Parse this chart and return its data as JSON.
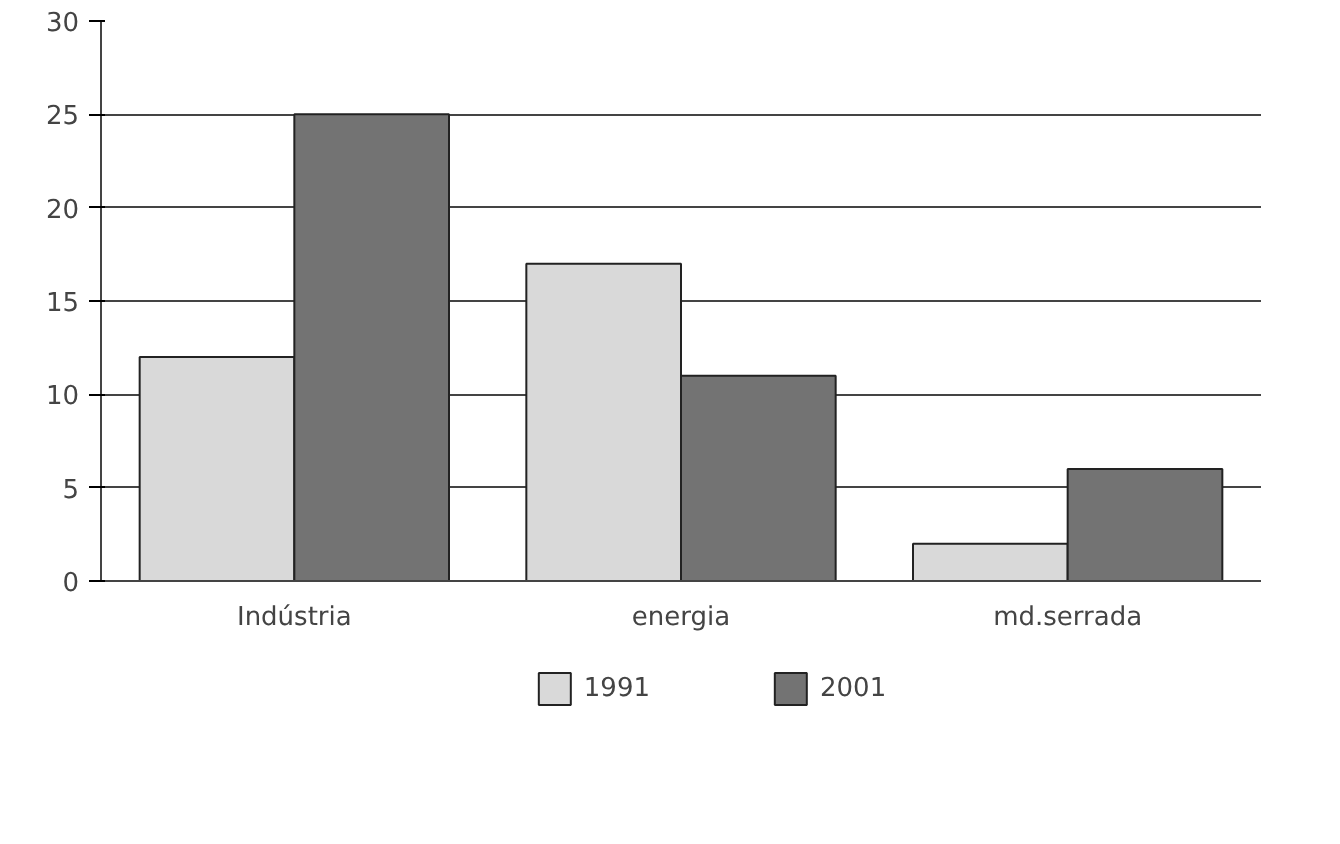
{
  "chart_data": {
    "type": "bar",
    "categories": [
      "Indústria",
      "energia",
      "md.serrada"
    ],
    "series": [
      {
        "name": "1991",
        "color": "#d9d9d9",
        "values": [
          12,
          17,
          2
        ]
      },
      {
        "name": "2001",
        "color": "#737373",
        "values": [
          25,
          11,
          6
        ]
      }
    ],
    "ylim": [
      0,
      30
    ],
    "yticks": [
      0,
      5,
      10,
      15,
      20,
      25,
      30
    ],
    "grid": "y",
    "legend": "bottom"
  }
}
